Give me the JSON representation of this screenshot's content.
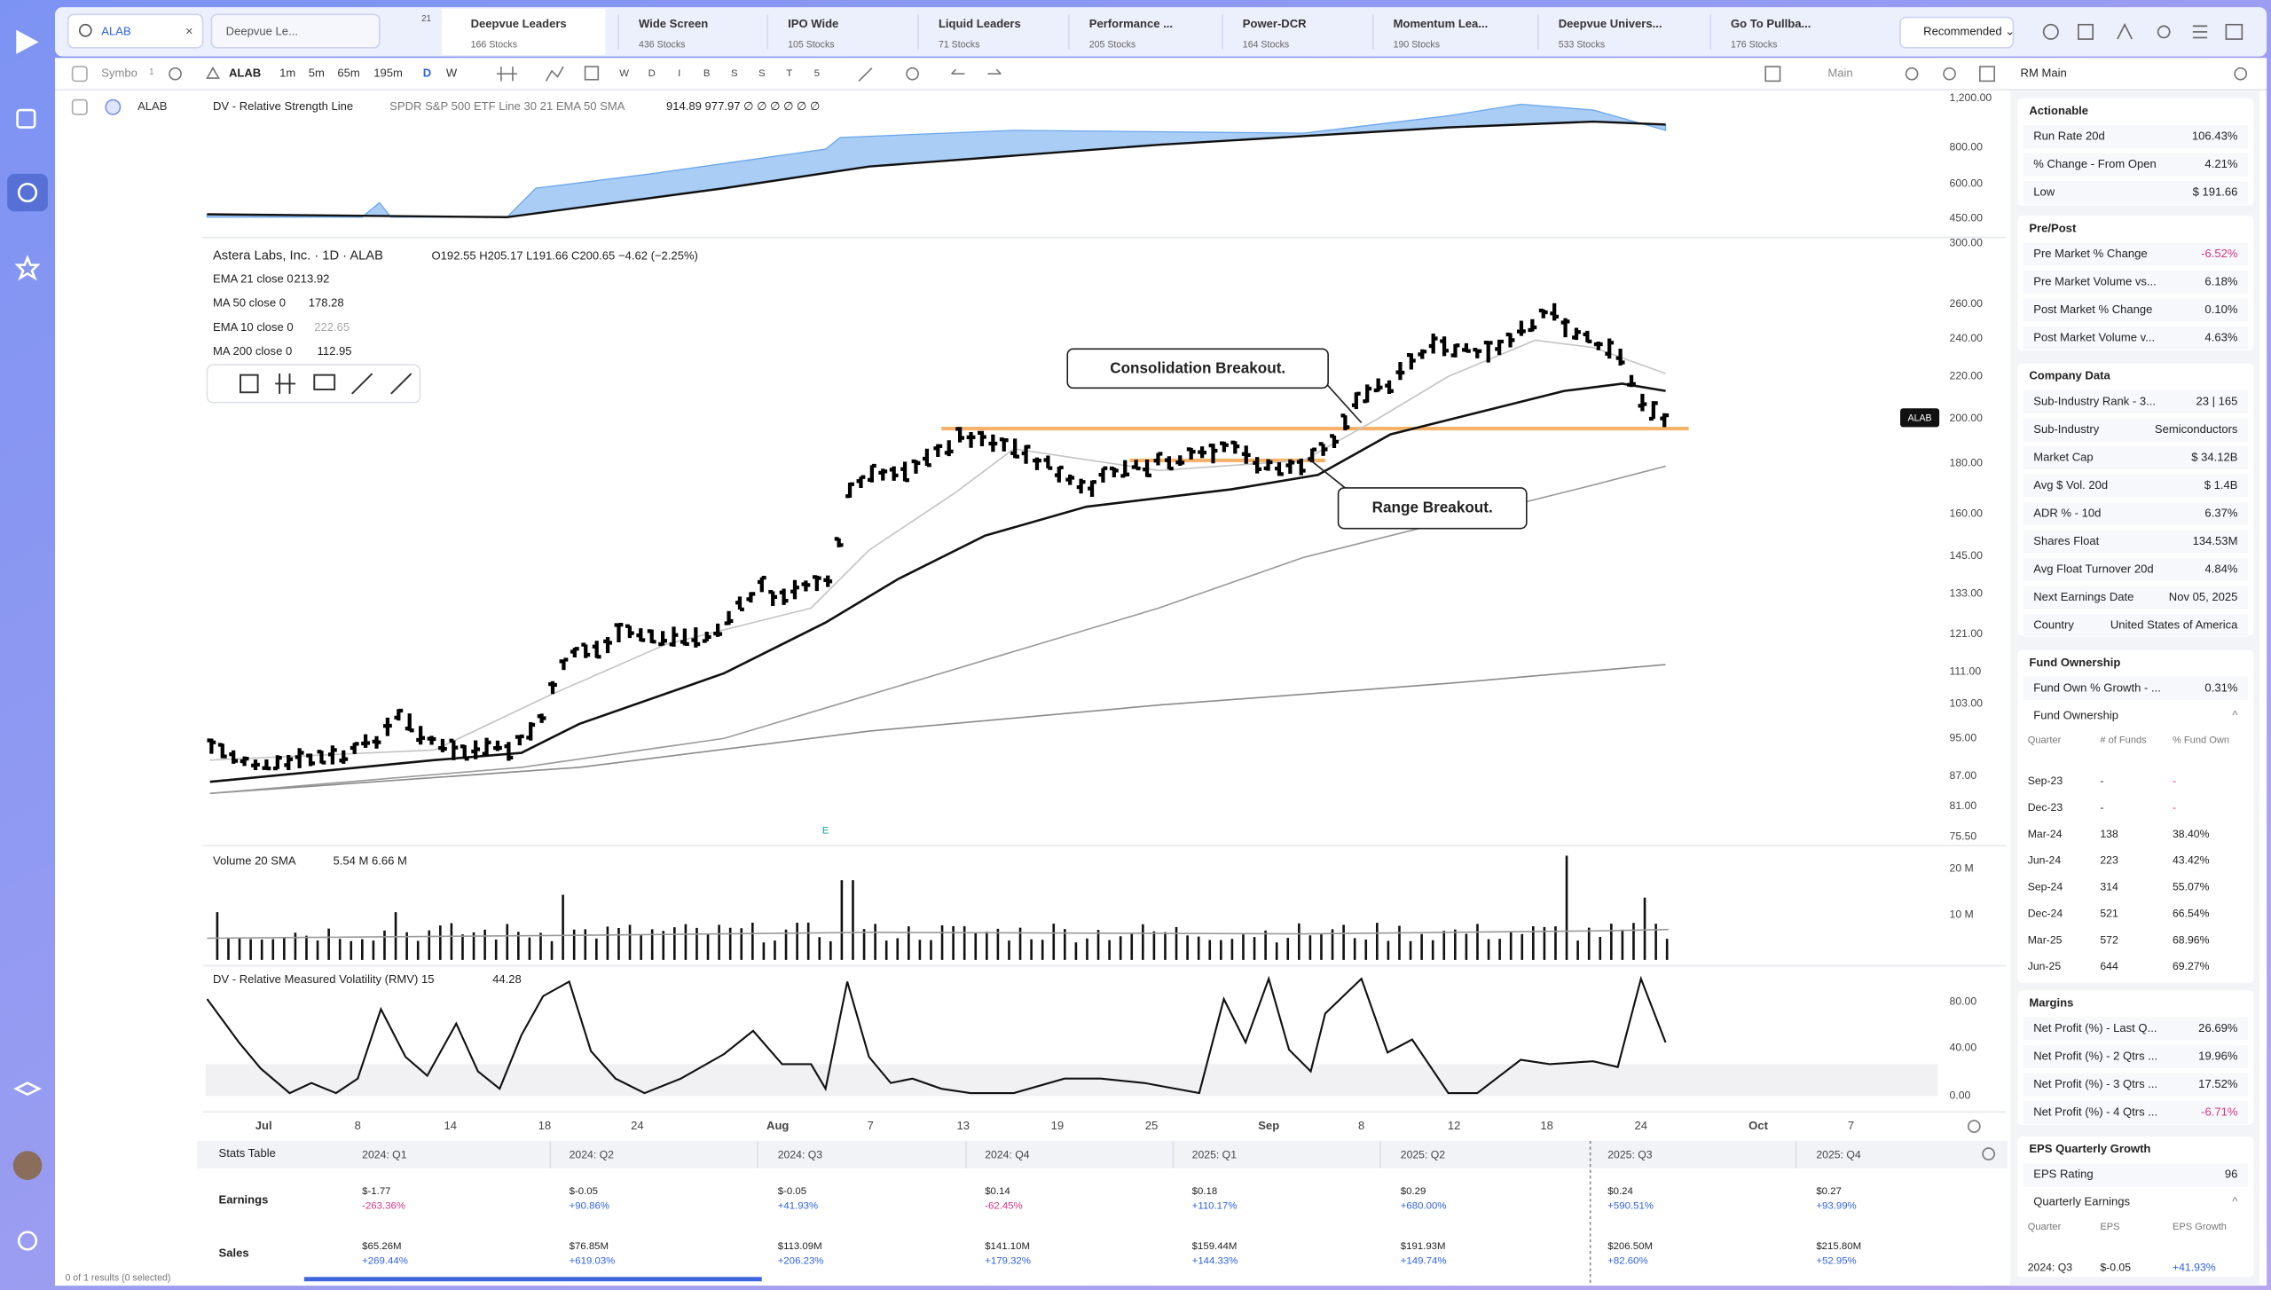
{
  "search": {
    "query": "ALAB",
    "watchlist": "Deepvue Le...",
    "badge": "21"
  },
  "tabs": [
    {
      "name": "Deepvue Leaders",
      "count": "166 Stocks"
    },
    {
      "name": "Wide Screen",
      "count": "436 Stocks"
    },
    {
      "name": "IPO Wide",
      "count": "105 Stocks"
    },
    {
      "name": "Liquid Leaders",
      "count": "71 Stocks"
    },
    {
      "name": "Performance ...",
      "count": "205 Stocks"
    },
    {
      "name": "Power-DCR",
      "count": "164 Stocks"
    },
    {
      "name": "Momentum Lea...",
      "count": "190 Stocks"
    },
    {
      "name": "Deepvue Univers...",
      "count": "533 Stocks"
    },
    {
      "name": "Go To Pullba...",
      "count": "176 Stocks"
    }
  ],
  "sort": "Recommended ⌄",
  "toolbar": {
    "symbol": "Symbo",
    "symbol_count": "1",
    "ticker": "ALAB",
    "intervals": [
      "1m",
      "5m",
      "65m",
      "195m",
      "D",
      "W"
    ],
    "letters": [
      "W",
      "D",
      "I",
      "B",
      "S",
      "S",
      "T",
      "5"
    ],
    "layout": "Main"
  },
  "watchlist_row": {
    "ticker": "ALAB"
  },
  "rs_panel": {
    "title": "DV - Relative Strength Line",
    "params": "SPDR S&P 500 ETF Line 30 21 EMA 50 SMA",
    "values": "914.89  977.97  ∅ ∅ ∅ ∅ ∅ ∅",
    "axis": [
      "1,200.00",
      "800.00",
      "600.00",
      "450.00"
    ]
  },
  "price_panel": {
    "title": "Astera Labs, Inc. · 1D · ALAB",
    "ohlc": "O192.55  H205.17  L191.66  C200.65  −4.62 (−2.25%)",
    "indicators": [
      {
        "name": "EMA 21 close 0",
        "value": "213.92"
      },
      {
        "name": "MA 50 close 0",
        "value": "178.28"
      },
      {
        "name": "EMA 10 close 0",
        "value": "222.65"
      },
      {
        "name": "MA 200 close 0",
        "value": "112.95"
      }
    ],
    "axis": [
      "300.00",
      "260.00",
      "240.00",
      "220.00",
      "200.00",
      "180.00",
      "160.00",
      "145.00",
      "133.00",
      "121.00",
      "111.00",
      "103.00",
      "95.00",
      "87.00",
      "81.00",
      "75.50"
    ],
    "annotations": [
      "Consolidation Breakout.",
      "Range Breakout."
    ],
    "price_tag": "ALAB",
    "earnings_marker": "E"
  },
  "volume_panel": {
    "title": "Volume 20 SMA",
    "values": "5.54 M  6.66 M",
    "axis": [
      "20 M",
      "10 M"
    ]
  },
  "rmv_panel": {
    "title": "DV - Relative Measured Volatility (RMV) 15",
    "value": "44.28",
    "axis": [
      "80.00",
      "40.00",
      "0.00"
    ]
  },
  "x_axis": [
    "Jul",
    "8",
    "14",
    "18",
    "24",
    "Aug",
    "7",
    "13",
    "19",
    "25",
    "Sep",
    "8",
    "12",
    "18",
    "24",
    "Oct",
    "7"
  ],
  "stats_table": {
    "title": "Stats Table",
    "columns": [
      "2024: Q1",
      "2024: Q2",
      "2024: Q3",
      "2024: Q4",
      "2025: Q1",
      "2025: Q2",
      "2025: Q3",
      "2025: Q4"
    ],
    "rows": [
      {
        "label": "Earnings",
        "cells": [
          {
            "value": "$-1.77",
            "change": "-263.36%"
          },
          {
            "value": "$-0.05",
            "change": "+90.86%"
          },
          {
            "value": "$-0.05",
            "change": "+41.93%"
          },
          {
            "value": "$0.14",
            "change": "-62.45%"
          },
          {
            "value": "$0.18",
            "change": "+110.17%"
          },
          {
            "value": "$0.29",
            "change": "+680.00%"
          },
          {
            "value": "$0.24",
            "change": "+590.51%"
          },
          {
            "value": "$0.27",
            "change": "+93.99%"
          }
        ]
      },
      {
        "label": "Sales",
        "cells": [
          {
            "value": "$65.26M",
            "change": "+269.44%"
          },
          {
            "value": "$76.85M",
            "change": "+619.03%"
          },
          {
            "value": "$113.09M",
            "change": "+206.23%"
          },
          {
            "value": "$141.10M",
            "change": "+179.32%"
          },
          {
            "value": "$159.44M",
            "change": "+144.33%"
          },
          {
            "value": "$191.93M",
            "change": "+149.74%"
          },
          {
            "value": "$206.50M",
            "change": "+82.60%"
          },
          {
            "value": "$215.80M",
            "change": "+52.95%"
          }
        ]
      }
    ]
  },
  "status": "0 of 1 results (0 selected)",
  "right_panel": {
    "layout": "RM Main",
    "actionable": {
      "title": "Actionable",
      "rows": [
        {
          "label": "Run Rate 20d",
          "value": "106.43%"
        },
        {
          "label": "% Change - From Open",
          "value": "4.21%"
        },
        {
          "label": "Low",
          "value": "$ 191.66"
        }
      ]
    },
    "pre_post": {
      "title": "Pre/Post",
      "rows": [
        {
          "label": "Pre Market % Change",
          "value": "-6.52%"
        },
        {
          "label": "Pre Market Volume vs...",
          "value": "6.18%"
        },
        {
          "label": "Post Market % Change",
          "value": "0.10%"
        },
        {
          "label": "Post Market Volume v...",
          "value": "4.63%"
        }
      ]
    },
    "company_data": {
      "title": "Company Data",
      "rows": [
        {
          "label": "Sub-Industry Rank - 3...",
          "value": "23 | 165"
        },
        {
          "label": "Sub-Industry",
          "value": "Semiconductors"
        },
        {
          "label": "Market Cap",
          "value": "$ 34.12B"
        },
        {
          "label": "Avg $ Vol. 20d",
          "value": "$ 1.4B"
        },
        {
          "label": "ADR % - 10d",
          "value": "6.37%"
        },
        {
          "label": "Shares Float",
          "value": "134.53M"
        },
        {
          "label": "Avg Float Turnover 20d",
          "value": "4.84%"
        },
        {
          "label": "Next Earnings Date",
          "value": "Nov 05, 2025"
        },
        {
          "label": "Country",
          "value": "United States of America"
        }
      ]
    },
    "fund_ownership": {
      "title": "Fund Ownership",
      "rows": [
        {
          "label": "Fund Own % Growth - ...",
          "value": "0.31%"
        }
      ],
      "table": {
        "title": "Fund Ownership",
        "columns": [
          "Quarter",
          "# of Funds",
          "% Fund Own"
        ],
        "rows": [
          [
            "Sep-23",
            "-",
            "-"
          ],
          [
            "Dec-23",
            "-",
            "-"
          ],
          [
            "Mar-24",
            "138",
            "38.40%"
          ],
          [
            "Jun-24",
            "223",
            "43.42%"
          ],
          [
            "Sep-24",
            "314",
            "55.07%"
          ],
          [
            "Dec-24",
            "521",
            "66.54%"
          ],
          [
            "Mar-25",
            "572",
            "68.96%"
          ],
          [
            "Jun-25",
            "644",
            "69.27%"
          ]
        ]
      }
    },
    "margins": {
      "title": "Margins",
      "rows": [
        {
          "label": "Net Profit (%) - Last Q...",
          "value": "26.69%"
        },
        {
          "label": "Net Profit (%) - 2 Qtrs ...",
          "value": "19.96%"
        },
        {
          "label": "Net Profit (%) - 3 Qtrs ...",
          "value": "17.52%"
        },
        {
          "label": "Net Profit (%) - 4 Qtrs ...",
          "value": "-6.71%"
        }
      ]
    },
    "eps": {
      "title": "EPS Quarterly Growth",
      "rows": [
        {
          "label": "EPS Rating",
          "value": "96"
        }
      ],
      "table": {
        "title": "Quarterly Earnings",
        "columns": [
          "Quarter",
          "EPS",
          "EPS Growth"
        ],
        "rows": [
          [
            "2024: Q3",
            "$-0.05",
            "+41.93%"
          ]
        ]
      }
    }
  }
}
